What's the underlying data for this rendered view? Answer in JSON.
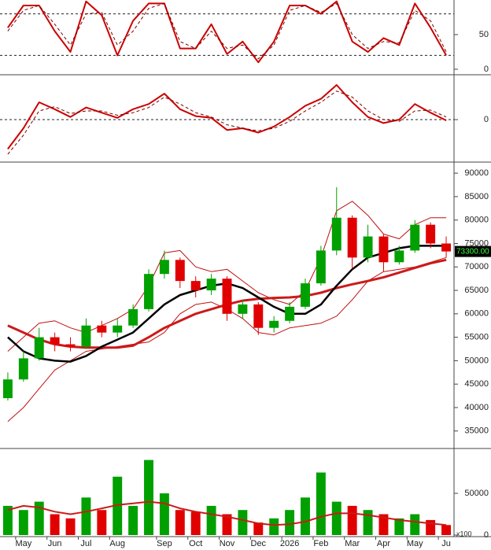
{
  "chart_data": [
    {
      "type": "line",
      "ylim": [
        0,
        100
      ],
      "yticks": [
        50,
        0
      ],
      "levels": [
        80,
        20
      ],
      "grid": false,
      "series": [
        {
          "color": "#cc0000",
          "width": 2,
          "dash": false,
          "values": [
            60,
            92,
            92,
            55,
            25,
            98,
            78,
            20,
            70,
            95,
            95,
            30,
            30,
            65,
            22,
            40,
            10,
            40,
            92,
            92,
            80,
            98,
            40,
            25,
            45,
            35,
            95,
            60,
            20
          ]
        },
        {
          "color": "#7a0000",
          "width": 1,
          "dash": true,
          "values": [
            55,
            85,
            92,
            65,
            35,
            80,
            82,
            35,
            55,
            88,
            95,
            40,
            30,
            55,
            30,
            35,
            15,
            35,
            85,
            92,
            82,
            95,
            50,
            30,
            40,
            38,
            85,
            70,
            25
          ]
        }
      ]
    },
    {
      "type": "line",
      "ylim": [
        -5000,
        5000
      ],
      "yticks": [
        0
      ],
      "grid": true,
      "series": [
        {
          "color": "#cc0000",
          "width": 2,
          "dash": false,
          "values": [
            -3400,
            -1000,
            2000,
            1200,
            300,
            1400,
            800,
            200,
            1200,
            1800,
            3000,
            1200,
            400,
            200,
            -1200,
            -1000,
            -1500,
            -800,
            300,
            1600,
            2400,
            4000,
            2000,
            300,
            -400,
            0,
            1800,
            800,
            -100
          ]
        },
        {
          "color": "#7a0000",
          "width": 1,
          "dash": true,
          "values": [
            -4000,
            -1800,
            1000,
            1500,
            700,
            1000,
            1000,
            500,
            800,
            1400,
            2600,
            1800,
            800,
            300,
            -600,
            -1000,
            -1300,
            -1000,
            -200,
            1000,
            2000,
            3300,
            2600,
            1000,
            0,
            -200,
            1000,
            1100,
            300
          ]
        }
      ]
    },
    {
      "type": "candlestick",
      "ylim": [
        31600,
        92200
      ],
      "yticks": [
        35000,
        40000,
        45000,
        50000,
        55000,
        60000,
        65000,
        70000,
        75000,
        80000,
        85000,
        90000
      ],
      "up_color": "#00a000",
      "down_color": "#e00000",
      "open": [
        42000,
        46000,
        50500,
        55000,
        53500,
        53000,
        57500,
        56000,
        57500,
        61000,
        68500,
        71500,
        67000,
        65000,
        67500,
        60000,
        62000,
        57000,
        58500,
        61500,
        66500,
        73500,
        80500,
        72000,
        76500,
        71000,
        73500,
        79000,
        75000
      ],
      "high": [
        47500,
        52000,
        57000,
        56000,
        55000,
        59000,
        58500,
        59000,
        62000,
        69500,
        73500,
        72000,
        68000,
        68500,
        68000,
        63000,
        62500,
        59500,
        62500,
        67500,
        74500,
        87000,
        81000,
        79000,
        77000,
        74500,
        80000,
        79500,
        76500
      ],
      "low": [
        41500,
        45500,
        50000,
        52000,
        52000,
        52500,
        55000,
        55000,
        57000,
        60500,
        67500,
        65500,
        63500,
        64000,
        58500,
        59000,
        55500,
        56000,
        58000,
        61000,
        66000,
        72500,
        69500,
        71000,
        69000,
        70500,
        73000,
        74000,
        72000
      ],
      "close": [
        46000,
        50500,
        55000,
        53500,
        53000,
        57500,
        56000,
        57500,
        61000,
        68500,
        71500,
        67000,
        65000,
        67500,
        60000,
        62000,
        57000,
        58500,
        61500,
        66500,
        73500,
        80500,
        72000,
        76500,
        71000,
        73500,
        79000,
        75000,
        73300
      ],
      "last_price": {
        "value": 73300,
        "label": "73300.00"
      },
      "series": [
        {
          "color": "#c01010",
          "width": 1,
          "values": [
            52000,
            55000,
            58000,
            58500,
            57000,
            56000,
            57500,
            59000,
            61000,
            66000,
            73000,
            73500,
            70000,
            69000,
            69500,
            67000,
            64500,
            63000,
            62000,
            65000,
            72000,
            82000,
            84000,
            81000,
            77000,
            76000,
            79000,
            80500,
            80500
          ]
        },
        {
          "color": "#c01010",
          "width": 1,
          "values": [
            37000,
            40000,
            44000,
            48000,
            50000,
            52000,
            52500,
            53000,
            53500,
            54000,
            56000,
            60000,
            62000,
            62500,
            61000,
            59000,
            56000,
            55500,
            57000,
            57500,
            58000,
            59500,
            63000,
            67000,
            69000,
            69500,
            70000,
            71000,
            72000
          ]
        },
        {
          "color": "#cc1a1a",
          "width": 3,
          "values": [
            57500,
            56000,
            54500,
            53500,
            53000,
            52800,
            52800,
            52800,
            53200,
            55000,
            57000,
            58500,
            60000,
            61000,
            62000,
            62800,
            63200,
            63400,
            63500,
            63800,
            64500,
            65500,
            66300,
            67000,
            67800,
            68800,
            69800,
            70800,
            71500
          ]
        },
        {
          "color": "#000000",
          "width": 2.5,
          "values": [
            55000,
            52000,
            50500,
            50000,
            49800,
            51000,
            53000,
            54500,
            56000,
            59000,
            62000,
            64000,
            65000,
            66000,
            66500,
            65500,
            63500,
            61500,
            60000,
            60000,
            62000,
            66000,
            69500,
            72000,
            73000,
            74000,
            74500,
            74500,
            74500
          ]
        }
      ]
    },
    {
      "type": "bar",
      "ylim": [
        0,
        100000
      ],
      "yticks": [
        50000,
        0
      ],
      "unit_label": "x100",
      "categories": [
        null,
        "May",
        null,
        "Jun",
        null,
        "Jul",
        null,
        "Aug",
        null,
        null,
        "Sep",
        null,
        "Oct",
        null,
        "Nov",
        null,
        "Dec",
        null,
        "2026",
        null,
        "Feb",
        null,
        "Mar",
        null,
        "Apr",
        null,
        "May",
        null,
        "Ju"
      ],
      "values": [
        35000,
        30000,
        40000,
        25000,
        20000,
        45000,
        30000,
        70000,
        35000,
        90000,
        50000,
        30000,
        28000,
        35000,
        25000,
        30000,
        15000,
        20000,
        30000,
        45000,
        75000,
        40000,
        35000,
        30000,
        25000,
        20000,
        25000,
        18000,
        12000
      ],
      "series": [
        {
          "color": "#cc1a1a",
          "width": 2,
          "values": [
            30000,
            35000,
            33000,
            28000,
            25000,
            28000,
            32000,
            36000,
            38000,
            40000,
            38000,
            32000,
            28000,
            25000,
            22000,
            18000,
            14000,
            12000,
            13000,
            16000,
            22000,
            26000,
            26000,
            24000,
            21000,
            18000,
            16000,
            14000,
            12000
          ]
        }
      ]
    }
  ]
}
